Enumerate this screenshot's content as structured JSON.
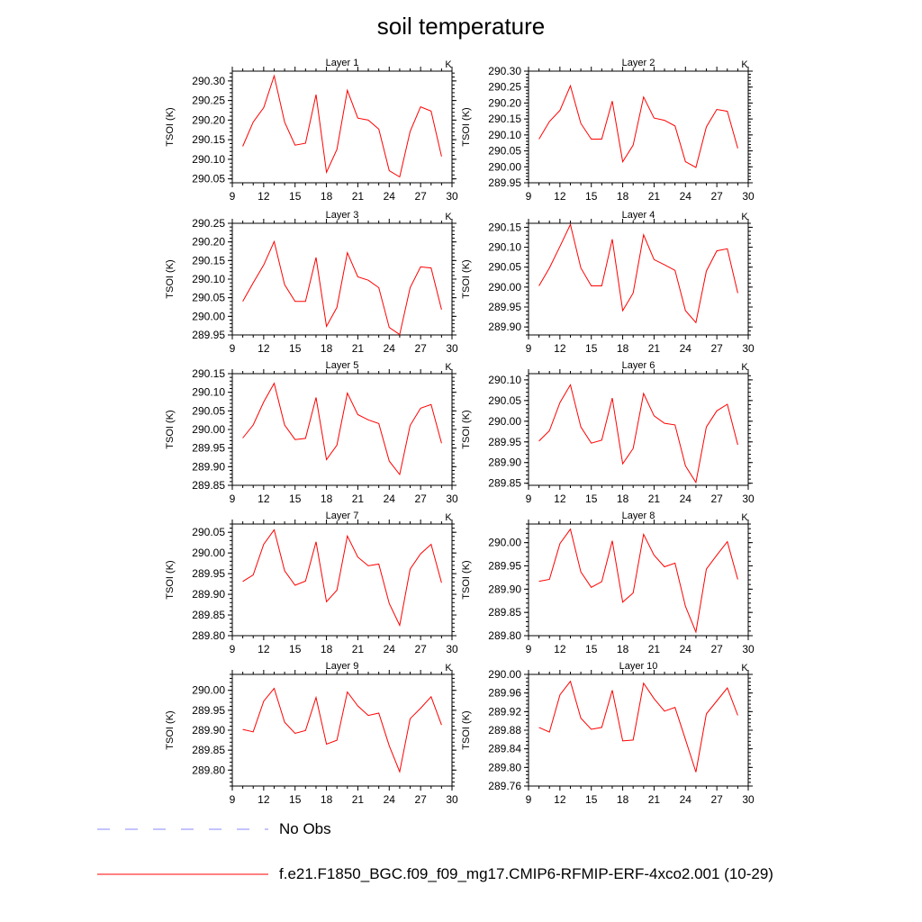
{
  "title": "soil temperature",
  "chart_data": [
    {
      "type": "line",
      "title": "Layer 1",
      "unit_label": "K",
      "ylabel": "TSOI (K)",
      "xlim": [
        9,
        30
      ],
      "ylim": [
        290.04,
        290.325
      ],
      "xticks": [
        "9",
        "12",
        "15",
        "18",
        "21",
        "24",
        "27",
        "30"
      ],
      "yticks": [
        "290.05",
        "290.10",
        "290.15",
        "290.20",
        "290.25",
        "290.30"
      ],
      "x": [
        10,
        11,
        12,
        13,
        14,
        15,
        16,
        17,
        18,
        19,
        20,
        21,
        22,
        23,
        24,
        25,
        26,
        27,
        28,
        29
      ],
      "series": [
        {
          "name": "f.e21.F1850_BGC.f09_f09_mg17.CMIP6-RFMIP-ERF-4xco2.001 (10-29)",
          "values": [
            290.133,
            290.195,
            290.232,
            290.313,
            290.195,
            290.136,
            290.141,
            290.265,
            290.067,
            290.125,
            290.276,
            290.205,
            290.2,
            290.177,
            290.071,
            290.055,
            290.171,
            290.234,
            290.223,
            290.107
          ]
        }
      ]
    },
    {
      "type": "line",
      "title": "Layer 2",
      "unit_label": "K",
      "ylabel": "TSOI (K)",
      "xlim": [
        9,
        30
      ],
      "ylim": [
        289.95,
        290.3
      ],
      "xticks": [
        "9",
        "12",
        "15",
        "18",
        "21",
        "24",
        "27",
        "30"
      ],
      "yticks": [
        "289.95",
        "290.00",
        "290.05",
        "290.10",
        "290.15",
        "290.20",
        "290.25",
        "290.30"
      ],
      "x": [
        10,
        11,
        12,
        13,
        14,
        15,
        16,
        17,
        18,
        19,
        20,
        21,
        22,
        23,
        24,
        25,
        26,
        27,
        28,
        29
      ],
      "series": [
        {
          "name": "f.e21.F1850_BGC.f09_f09_mg17.CMIP6-RFMIP-ERF-4xco2.001 (10-29)",
          "values": [
            290.087,
            290.142,
            290.177,
            290.254,
            290.136,
            290.087,
            290.087,
            290.206,
            290.016,
            290.068,
            290.219,
            290.153,
            290.146,
            290.128,
            290.016,
            289.998,
            290.125,
            290.18,
            290.174,
            290.058
          ]
        }
      ]
    },
    {
      "type": "line",
      "title": "Layer 3",
      "unit_label": "K",
      "ylabel": "TSOI (K)",
      "xlim": [
        9,
        30
      ],
      "ylim": [
        289.95,
        290.25
      ],
      "xticks": [
        "9",
        "12",
        "15",
        "18",
        "21",
        "24",
        "27",
        "30"
      ],
      "yticks": [
        "289.95",
        "290.00",
        "290.05",
        "290.10",
        "290.15",
        "290.20",
        "290.25"
      ],
      "x": [
        10,
        11,
        12,
        13,
        14,
        15,
        16,
        17,
        18,
        19,
        20,
        21,
        22,
        23,
        24,
        25,
        26,
        27,
        28,
        29
      ],
      "series": [
        {
          "name": "f.e21.F1850_BGC.f09_f09_mg17.CMIP6-RFMIP-ERF-4xco2.001 (10-29)",
          "values": [
            290.04,
            290.09,
            290.138,
            290.201,
            290.085,
            290.04,
            290.04,
            290.158,
            289.973,
            290.024,
            290.171,
            290.106,
            290.097,
            290.077,
            289.97,
            289.951,
            290.077,
            290.133,
            290.13,
            290.018
          ]
        }
      ]
    },
    {
      "type": "line",
      "title": "Layer 4",
      "unit_label": "K",
      "ylabel": "TSOI (K)",
      "xlim": [
        9,
        30
      ],
      "ylim": [
        289.88,
        290.16
      ],
      "xticks": [
        "9",
        "12",
        "15",
        "18",
        "21",
        "24",
        "27",
        "30"
      ],
      "yticks": [
        "289.90",
        "289.95",
        "290.00",
        "290.05",
        "290.10",
        "290.15"
      ],
      "x": [
        10,
        11,
        12,
        13,
        14,
        15,
        16,
        17,
        18,
        19,
        20,
        21,
        22,
        23,
        24,
        25,
        26,
        27,
        28,
        29
      ],
      "series": [
        {
          "name": "f.e21.F1850_BGC.f09_f09_mg17.CMIP6-RFMIP-ERF-4xco2.001 (10-29)",
          "values": [
            290.003,
            290.048,
            290.102,
            290.157,
            290.048,
            290.003,
            290.003,
            290.12,
            289.941,
            289.985,
            290.131,
            290.069,
            290.056,
            290.042,
            289.941,
            289.911,
            290.04,
            290.091,
            290.096,
            289.985
          ]
        }
      ]
    },
    {
      "type": "line",
      "title": "Layer 5",
      "unit_label": "K",
      "ylabel": "TSOI (K)",
      "xlim": [
        9,
        30
      ],
      "ylim": [
        289.85,
        290.15
      ],
      "xticks": [
        "9",
        "12",
        "15",
        "18",
        "21",
        "24",
        "27",
        "30"
      ],
      "yticks": [
        "289.85",
        "289.90",
        "289.95",
        "290.00",
        "290.05",
        "290.10",
        "290.15"
      ],
      "x": [
        10,
        11,
        12,
        13,
        14,
        15,
        16,
        17,
        18,
        19,
        20,
        21,
        22,
        23,
        24,
        25,
        26,
        27,
        28,
        29
      ],
      "series": [
        {
          "name": "f.e21.F1850_BGC.f09_f09_mg17.CMIP6-RFMIP-ERF-4xco2.001 (10-29)",
          "values": [
            289.977,
            290.012,
            290.074,
            290.124,
            290.012,
            289.973,
            289.976,
            290.086,
            289.919,
            289.958,
            290.098,
            290.04,
            290.026,
            290.016,
            289.915,
            289.879,
            290.011,
            290.057,
            290.067,
            289.963
          ]
        }
      ]
    },
    {
      "type": "line",
      "title": "Layer 6",
      "unit_label": "K",
      "ylabel": "TSOI (K)",
      "xlim": [
        9,
        30
      ],
      "ylim": [
        289.845,
        290.115
      ],
      "xticks": [
        "9",
        "12",
        "15",
        "18",
        "21",
        "24",
        "27",
        "30"
      ],
      "yticks": [
        "289.85",
        "289.90",
        "289.95",
        "290.00",
        "290.05",
        "290.10"
      ],
      "x": [
        10,
        11,
        12,
        13,
        14,
        15,
        16,
        17,
        18,
        19,
        20,
        21,
        22,
        23,
        24,
        25,
        26,
        27,
        28,
        29
      ],
      "series": [
        {
          "name": "f.e21.F1850_BGC.f09_f09_mg17.CMIP6-RFMIP-ERF-4xco2.001 (10-29)",
          "values": [
            289.952,
            289.977,
            290.045,
            290.088,
            289.986,
            289.947,
            289.954,
            290.056,
            289.897,
            289.934,
            290.067,
            290.013,
            289.995,
            289.991,
            289.892,
            289.852,
            289.986,
            290.025,
            290.041,
            289.943
          ]
        }
      ]
    },
    {
      "type": "line",
      "title": "Layer 7",
      "unit_label": "K",
      "ylabel": "TSOI (K)",
      "xlim": [
        9,
        30
      ],
      "ylim": [
        289.8,
        290.07
      ],
      "xticks": [
        "9",
        "12",
        "15",
        "18",
        "21",
        "24",
        "27",
        "30"
      ],
      "yticks": [
        "289.80",
        "289.85",
        "289.90",
        "289.95",
        "290.00",
        "290.05"
      ],
      "x": [
        10,
        11,
        12,
        13,
        14,
        15,
        16,
        17,
        18,
        19,
        20,
        21,
        22,
        23,
        24,
        25,
        26,
        27,
        28,
        29
      ],
      "series": [
        {
          "name": "f.e21.F1850_BGC.f09_f09_mg17.CMIP6-RFMIP-ERF-4xco2.001 (10-29)",
          "values": [
            289.931,
            289.947,
            290.021,
            290.056,
            289.957,
            289.922,
            289.932,
            290.027,
            289.882,
            289.91,
            290.041,
            289.99,
            289.969,
            289.973,
            289.878,
            289.825,
            289.961,
            289.998,
            290.021,
            289.928
          ]
        }
      ]
    },
    {
      "type": "line",
      "title": "Layer 8",
      "unit_label": "K",
      "ylabel": "TSOI (K)",
      "xlim": [
        9,
        30
      ],
      "ylim": [
        289.8,
        290.04
      ],
      "xticks": [
        "9",
        "12",
        "15",
        "18",
        "21",
        "24",
        "27",
        "30"
      ],
      "yticks": [
        "289.80",
        "289.85",
        "289.90",
        "289.95",
        "290.00"
      ],
      "x": [
        10,
        11,
        12,
        13,
        14,
        15,
        16,
        17,
        18,
        19,
        20,
        21,
        22,
        23,
        24,
        25,
        26,
        27,
        28,
        29
      ],
      "series": [
        {
          "name": "f.e21.F1850_BGC.f09_f09_mg17.CMIP6-RFMIP-ERF-4xco2.001 (10-29)",
          "values": [
            289.917,
            289.921,
            289.998,
            290.029,
            289.937,
            289.904,
            289.916,
            290.004,
            289.872,
            289.892,
            290.018,
            289.973,
            289.948,
            289.956,
            289.863,
            289.808,
            289.943,
            289.973,
            290.002,
            289.921
          ]
        }
      ]
    },
    {
      "type": "line",
      "title": "Layer 9",
      "unit_label": "K",
      "ylabel": "TSOI (K)",
      "xlim": [
        9,
        30
      ],
      "ylim": [
        289.76,
        290.04
      ],
      "xticks": [
        "9",
        "12",
        "15",
        "18",
        "21",
        "24",
        "27",
        "30"
      ],
      "yticks": [
        "289.80",
        "289.85",
        "289.90",
        "289.95",
        "290.00"
      ],
      "x": [
        10,
        11,
        12,
        13,
        14,
        15,
        16,
        17,
        18,
        19,
        20,
        21,
        22,
        23,
        24,
        25,
        26,
        27,
        28,
        29
      ],
      "series": [
        {
          "name": "f.e21.F1850_BGC.f09_f09_mg17.CMIP6-RFMIP-ERF-4xco2.001 (10-29)",
          "values": [
            289.902,
            289.896,
            289.973,
            290.005,
            289.92,
            289.892,
            289.899,
            289.982,
            289.865,
            289.875,
            289.996,
            289.961,
            289.937,
            289.943,
            289.861,
            289.796,
            289.929,
            289.955,
            289.984,
            289.913
          ]
        }
      ]
    },
    {
      "type": "line",
      "title": "Layer 10",
      "unit_label": "K",
      "ylabel": "TSOI (K)",
      "xlim": [
        9,
        30
      ],
      "ylim": [
        289.76,
        290.0
      ],
      "xticks": [
        "9",
        "12",
        "15",
        "18",
        "21",
        "24",
        "27",
        "30"
      ],
      "yticks": [
        "289.76",
        "289.80",
        "289.84",
        "289.88",
        "289.92",
        "289.96",
        "290.00"
      ],
      "x": [
        10,
        11,
        12,
        13,
        14,
        15,
        16,
        17,
        18,
        19,
        20,
        21,
        22,
        23,
        24,
        25,
        26,
        27,
        28,
        29
      ],
      "series": [
        {
          "name": "f.e21.F1850_BGC.f09_f09_mg17.CMIP6-RFMIP-ERF-4xco2.001 (10-29)",
          "values": [
            289.886,
            289.876,
            289.956,
            289.985,
            289.906,
            289.882,
            289.886,
            289.966,
            289.857,
            289.859,
            289.981,
            289.948,
            289.921,
            289.929,
            289.86,
            289.79,
            289.915,
            289.943,
            289.971,
            289.912
          ]
        }
      ]
    }
  ],
  "legend": {
    "items": [
      {
        "label": "No Obs",
        "color": "#8888ff",
        "style": "dashed"
      },
      {
        "label": "f.e21.F1850_BGC.f09_f09_mg17.CMIP6-RFMIP-ERF-4xco2.001 (10-29)",
        "color": "#ff0000",
        "style": "solid"
      }
    ]
  }
}
